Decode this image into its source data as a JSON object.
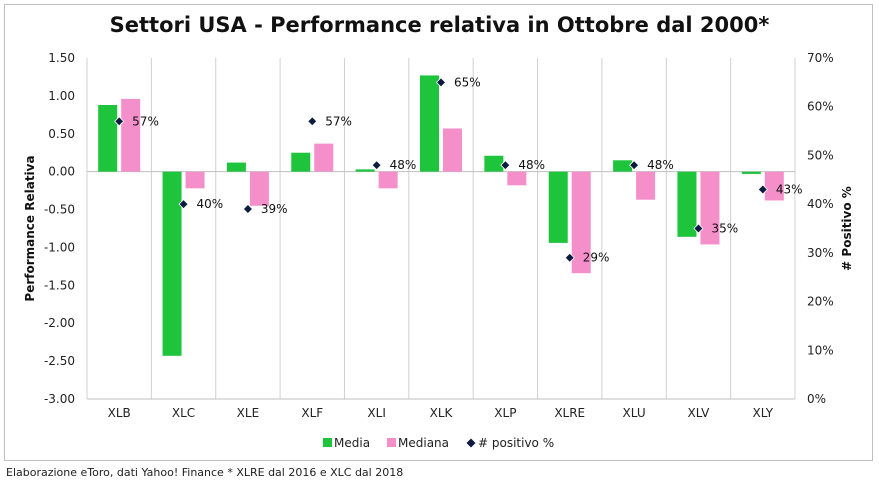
{
  "title": "Settori USA - Performance relativa in Ottobre dal 2000*",
  "footnote": "Elaborazione eToro, dati Yahoo! Finance * XLRE dal 2016 e XLC dal 2018",
  "colors": {
    "media": "#1ec43c",
    "mediana": "#f48fca",
    "positivo": "#0d1b3e"
  },
  "chart_data": {
    "type": "bar",
    "categories": [
      "XLB",
      "XLC",
      "XLE",
      "XLF",
      "XLI",
      "XLK",
      "XLP",
      "XLRE",
      "XLU",
      "XLV",
      "XLY"
    ],
    "series": [
      {
        "name": "Media",
        "axis": "left",
        "values": [
          0.88,
          -2.43,
          0.12,
          0.25,
          0.03,
          1.27,
          0.21,
          -0.94,
          0.15,
          -0.86,
          -0.03
        ]
      },
      {
        "name": "Mediana",
        "axis": "left",
        "values": [
          0.96,
          -0.22,
          -0.45,
          0.37,
          -0.22,
          0.57,
          -0.18,
          -1.34,
          -0.37,
          -0.96,
          -0.38
        ]
      },
      {
        "name": "# positivo %",
        "axis": "right",
        "type": "scatter",
        "values": [
          57,
          40,
          39,
          57,
          48,
          65,
          48,
          29,
          48,
          35,
          43
        ]
      }
    ],
    "point_labels": [
      "57%",
      "40%",
      "39%",
      "57%",
      "48%",
      "65%",
      "48%",
      "29%",
      "48%",
      "35%",
      "43%"
    ],
    "ylabel": "Performance Relativa",
    "y2label": "# Positivo %",
    "ylim": [
      -3.0,
      1.5
    ],
    "y2lim": [
      0,
      70
    ],
    "yticks": [
      "1.50",
      "1.00",
      "0.50",
      "0.00",
      "-0.50",
      "-1.00",
      "-1.50",
      "-2.00",
      "-2.50",
      "-3.00"
    ],
    "y2ticks": [
      "70%",
      "60%",
      "50%",
      "40%",
      "30%",
      "20%",
      "10%",
      "0%"
    ],
    "legend": [
      "Media",
      "Mediana",
      "# positivo %"
    ],
    "legend_position": "bottom"
  }
}
